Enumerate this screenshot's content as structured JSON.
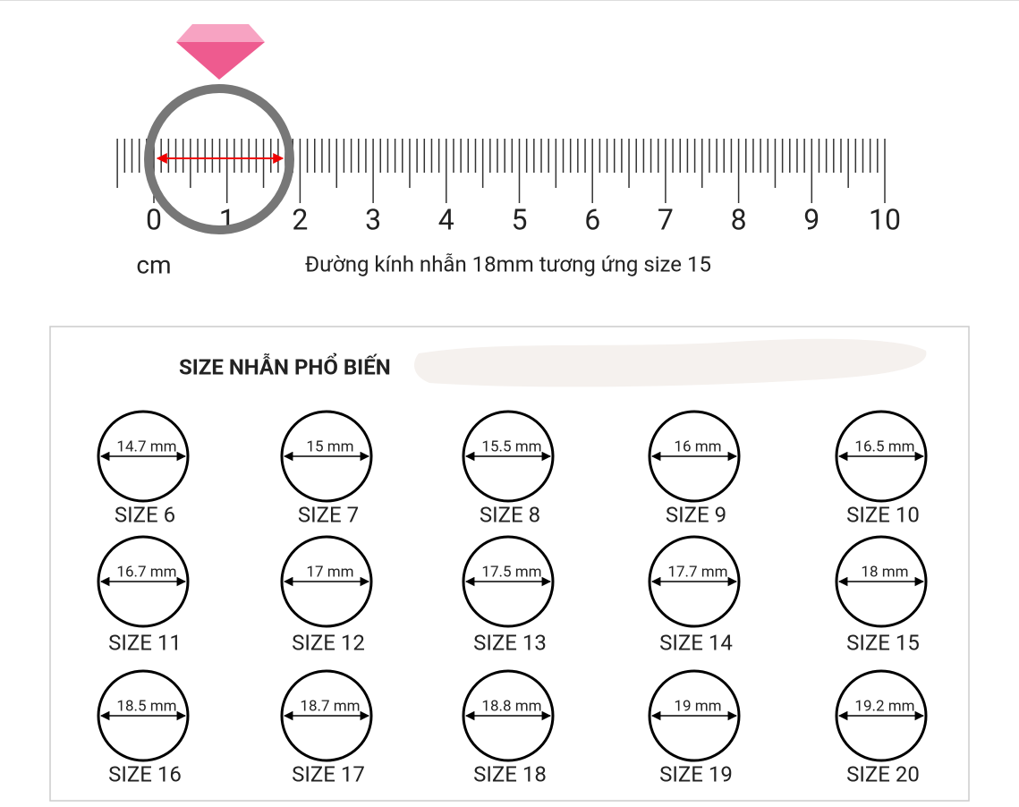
{
  "ruler": {
    "labels": [
      "0",
      "1",
      "2",
      "3",
      "4",
      "5",
      "6",
      "7",
      "8",
      "9",
      "10"
    ],
    "unit": "cm",
    "caption": "Đường kính nhẫn 18mm tương ứng size 15"
  },
  "table": {
    "title": "SIZE NHẪN PHỔ BIẾN",
    "items": [
      {
        "diameter": "14.7 mm",
        "size": "SIZE 6"
      },
      {
        "diameter": "15 mm",
        "size": "SIZE 7"
      },
      {
        "diameter": "15.5 mm",
        "size": "SIZE 8"
      },
      {
        "diameter": "16 mm",
        "size": "SIZE 9"
      },
      {
        "diameter": "16.5 mm",
        "size": "SIZE 10"
      },
      {
        "diameter": "16.7 mm",
        "size": "SIZE 11"
      },
      {
        "diameter": "17 mm",
        "size": "SIZE 12"
      },
      {
        "diameter": "17.5 mm",
        "size": "SIZE 13"
      },
      {
        "diameter": "17.7 mm",
        "size": "SIZE 14"
      },
      {
        "diameter": "18 mm",
        "size": "SIZE 15"
      },
      {
        "diameter": "18.5 mm",
        "size": "SIZE 16"
      },
      {
        "diameter": "18.7 mm",
        "size": "SIZE 17"
      },
      {
        "diameter": "18.8 mm",
        "size": "SIZE 18"
      },
      {
        "diameter": "19 mm",
        "size": "SIZE 19"
      },
      {
        "diameter": "19.2 mm",
        "size": "SIZE 20"
      }
    ]
  }
}
